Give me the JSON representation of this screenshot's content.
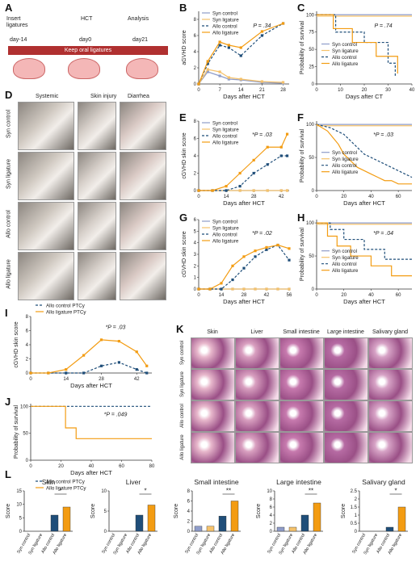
{
  "panel_letters": [
    "A",
    "B",
    "C",
    "D",
    "E",
    "F",
    "G",
    "H",
    "I",
    "J",
    "K",
    "L"
  ],
  "timeline": {
    "labels": [
      "Insert ligatures",
      "HCT",
      "Analysis"
    ],
    "days": [
      "day-14",
      "day0",
      "day21"
    ],
    "bar_text": "Keep oral ligatures"
  },
  "photos": {
    "columns": [
      "Systemic",
      "Skin injury",
      "Diarrhea"
    ],
    "rows": [
      "Syn control",
      "Syn ligature",
      "Allo control",
      "Allo ligature"
    ]
  },
  "histology": {
    "columns": [
      "Skin",
      "Liver",
      "Small intestine",
      "Large intestine",
      "Salivary gland"
    ],
    "rows": [
      "Syn control",
      "Syn ligature",
      "Allo control",
      "Allo ligature"
    ]
  },
  "colors": {
    "syn_control": "#8e9cc9",
    "syn_ligature": "#f5c26b",
    "allo_control": "#1f4e79",
    "allo_ligature": "#f39c12"
  },
  "chart_data": [
    {
      "id": "B",
      "type": "line",
      "ylabel": "aGVHD score",
      "xlabel": "Days after HCT",
      "annotation": "P = .34",
      "x_ticks": [
        0,
        7,
        14,
        21,
        28
      ],
      "y_ticks": [
        0,
        2,
        4,
        6,
        8
      ],
      "xlim": [
        0,
        30
      ],
      "ylim": [
        0,
        9
      ],
      "legend": [
        "Syn control",
        "Syn ligature",
        "Allo control",
        "Allo ligature"
      ],
      "series": [
        {
          "name": "Syn control",
          "x": [
            0,
            3,
            7,
            10,
            14,
            21,
            28
          ],
          "values": [
            0,
            1.5,
            1,
            0.6,
            0.5,
            0.2,
            0.1
          ]
        },
        {
          "name": "Syn ligature",
          "x": [
            0,
            3,
            7,
            10,
            14,
            21,
            28
          ],
          "values": [
            0,
            1.8,
            1.5,
            0.8,
            0.6,
            0.3,
            0.2
          ]
        },
        {
          "name": "Allo control",
          "x": [
            0,
            3,
            7,
            10,
            14,
            21,
            28
          ],
          "values": [
            0,
            2.5,
            4.8,
            4.5,
            3.5,
            6,
            7.5
          ]
        },
        {
          "name": "Allo ligature",
          "x": [
            0,
            3,
            7,
            10,
            14,
            21,
            28
          ],
          "values": [
            0,
            2.8,
            5.2,
            4.8,
            4.5,
            6.5,
            7.5
          ]
        }
      ]
    },
    {
      "id": "C",
      "type": "line",
      "ylabel": "Probability of survival",
      "xlabel": "Days after CT",
      "annotation": "P = .74",
      "x_ticks": [
        0,
        10,
        20,
        30,
        40
      ],
      "y_ticks": [
        0,
        25,
        50,
        75,
        100
      ],
      "xlim": [
        0,
        40
      ],
      "ylim": [
        0,
        105
      ],
      "legend": [
        "Syn control",
        "Syn ligature",
        "Allo control",
        "Allo ligature"
      ],
      "series": [
        {
          "name": "Syn control",
          "x": [
            0,
            40
          ],
          "values": [
            100,
            100
          ]
        },
        {
          "name": "Syn ligature",
          "x": [
            0,
            40
          ],
          "values": [
            98,
            98
          ]
        },
        {
          "name": "Allo control",
          "x": [
            0,
            8,
            8,
            20,
            20,
            30,
            30,
            33,
            33
          ],
          "values": [
            100,
            100,
            75,
            75,
            60,
            60,
            30,
            30,
            10
          ]
        },
        {
          "name": "Allo ligature",
          "x": [
            0,
            7,
            7,
            15,
            15,
            25,
            25,
            34,
            34
          ],
          "values": [
            100,
            100,
            80,
            80,
            60,
            60,
            40,
            40,
            15
          ]
        }
      ]
    },
    {
      "id": "E",
      "type": "line",
      "ylabel": "cGVHD skin score",
      "xlabel": "Days after HCT",
      "annotation": "*P = .03",
      "x_ticks": [
        0,
        14,
        28,
        42
      ],
      "y_ticks": [
        0,
        2,
        4,
        6,
        8
      ],
      "xlim": [
        0,
        46
      ],
      "ylim": [
        0,
        8
      ],
      "legend": [
        "Syn control",
        "Syn ligature",
        "Allo control",
        "Allo ligature"
      ],
      "series": [
        {
          "name": "Syn control",
          "x": [
            0,
            7,
            14,
            21,
            28,
            35,
            42,
            45
          ],
          "values": [
            0,
            0,
            0,
            0,
            0,
            0,
            0,
            0
          ]
        },
        {
          "name": "Syn ligature",
          "x": [
            0,
            7,
            14,
            21,
            28,
            35,
            42,
            45
          ],
          "values": [
            0,
            0,
            0,
            0,
            0,
            0,
            0,
            0
          ]
        },
        {
          "name": "Allo control",
          "x": [
            0,
            7,
            14,
            21,
            28,
            35,
            42,
            45
          ],
          "values": [
            0,
            0,
            0,
            0.5,
            2,
            3,
            4,
            4
          ]
        },
        {
          "name": "Allo ligature",
          "x": [
            0,
            7,
            14,
            21,
            28,
            35,
            42,
            45
          ],
          "values": [
            0,
            0,
            0.5,
            2,
            3.5,
            5,
            5,
            6.5
          ]
        }
      ]
    },
    {
      "id": "F",
      "type": "line",
      "ylabel": "Probability of survival",
      "xlabel": "Days after HCT",
      "annotation": "*P = .03",
      "x_ticks": [
        0,
        20,
        40,
        60
      ],
      "y_ticks": [
        0,
        50,
        100
      ],
      "xlim": [
        0,
        70
      ],
      "ylim": [
        0,
        105
      ],
      "legend": [
        "Syn control",
        "Syn ligature",
        "Allo control",
        "Allo ligature"
      ],
      "series": [
        {
          "name": "Syn control",
          "x": [
            0,
            70
          ],
          "values": [
            100,
            100
          ]
        },
        {
          "name": "Syn ligature",
          "x": [
            0,
            70
          ],
          "values": [
            98,
            98
          ]
        },
        {
          "name": "Allo control",
          "x": [
            0,
            10,
            15,
            20,
            25,
            30,
            35,
            40,
            45,
            50,
            55,
            60,
            65,
            70
          ],
          "values": [
            100,
            95,
            90,
            85,
            75,
            65,
            55,
            50,
            45,
            40,
            35,
            30,
            25,
            20
          ]
        },
        {
          "name": "Allo ligature",
          "x": [
            0,
            8,
            12,
            16,
            20,
            25,
            30,
            35,
            40,
            45,
            50,
            55,
            60,
            70
          ],
          "values": [
            100,
            90,
            80,
            70,
            55,
            45,
            35,
            30,
            25,
            20,
            15,
            15,
            10,
            10
          ]
        }
      ]
    },
    {
      "id": "G",
      "type": "line",
      "ylabel": "cGVHD skin score",
      "xlabel": "Days after HCT",
      "annotation": "*P = .02",
      "x_ticks": [
        0,
        14,
        28,
        42,
        56
      ],
      "y_ticks": [
        0,
        1,
        2,
        3,
        4,
        5,
        6
      ],
      "xlim": [
        0,
        56
      ],
      "ylim": [
        0,
        6
      ],
      "legend": [
        "Syn control",
        "Syn ligature",
        "Allo control",
        "Allo ligature"
      ],
      "series": [
        {
          "name": "Syn control",
          "x": [
            0,
            7,
            14,
            21,
            28,
            35,
            42,
            49,
            56
          ],
          "values": [
            0,
            0,
            0,
            0,
            0,
            0,
            0,
            0,
            0
          ]
        },
        {
          "name": "Syn ligature",
          "x": [
            0,
            7,
            14,
            21,
            28,
            35,
            42,
            49,
            56
          ],
          "values": [
            0,
            0,
            0,
            0,
            0,
            0,
            0,
            0,
            0
          ]
        },
        {
          "name": "Allo control",
          "x": [
            0,
            7,
            14,
            21,
            28,
            35,
            42,
            49,
            56
          ],
          "values": [
            0,
            0,
            0,
            0.8,
            1.8,
            2.8,
            3.4,
            3.8,
            2.5
          ]
        },
        {
          "name": "Allo ligature",
          "x": [
            0,
            7,
            14,
            21,
            28,
            35,
            42,
            49,
            56
          ],
          "values": [
            0,
            0,
            0.5,
            2,
            2.8,
            3.3,
            3.6,
            3.8,
            3.5
          ]
        }
      ]
    },
    {
      "id": "H",
      "type": "line",
      "ylabel": "Probability of survival",
      "xlabel": "Days after HCT",
      "annotation": "*P = .04",
      "x_ticks": [
        0,
        20,
        40,
        60
      ],
      "y_ticks": [
        0,
        50,
        100
      ],
      "xlim": [
        0,
        70
      ],
      "ylim": [
        0,
        105
      ],
      "legend": [
        "Syn control",
        "Syn ligature",
        "Allo control",
        "Allo ligature"
      ],
      "series": [
        {
          "name": "Syn control",
          "x": [
            0,
            70
          ],
          "values": [
            100,
            100
          ]
        },
        {
          "name": "Syn ligature",
          "x": [
            0,
            70
          ],
          "values": [
            98,
            98
          ]
        },
        {
          "name": "Allo control",
          "x": [
            0,
            10,
            10,
            20,
            20,
            35,
            35,
            50,
            50,
            70
          ],
          "values": [
            100,
            100,
            90,
            90,
            75,
            75,
            60,
            60,
            45,
            45
          ]
        },
        {
          "name": "Allo ligature",
          "x": [
            0,
            8,
            8,
            15,
            15,
            25,
            25,
            40,
            40,
            55,
            55,
            70
          ],
          "values": [
            100,
            100,
            80,
            80,
            65,
            65,
            50,
            50,
            35,
            35,
            20,
            20
          ]
        }
      ]
    },
    {
      "id": "I",
      "type": "line",
      "ylabel": "cGVHD skin score",
      "xlabel": "Days after HCT",
      "annotation": "*P = .03",
      "x_ticks": [
        0,
        14,
        28,
        42
      ],
      "y_ticks": [
        0,
        2,
        4,
        6,
        8
      ],
      "xlim": [
        0,
        48
      ],
      "ylim": [
        0,
        8
      ],
      "legend": [
        "Allo control PTCy",
        "Allo ligature PTCy"
      ],
      "series": [
        {
          "name": "Allo control PTCy",
          "x": [
            0,
            7,
            14,
            21,
            28,
            35,
            42,
            46
          ],
          "values": [
            0,
            0,
            0,
            0,
            1,
            1.5,
            0.5,
            0
          ]
        },
        {
          "name": "Allo ligature PTCy",
          "x": [
            0,
            7,
            14,
            21,
            28,
            35,
            42,
            46
          ],
          "values": [
            0,
            0,
            0.5,
            2.5,
            4.7,
            4.5,
            3,
            1
          ]
        }
      ]
    },
    {
      "id": "J",
      "type": "line",
      "ylabel": "Probability of survival",
      "xlabel": "Days after HCT",
      "annotation": "*P = .049",
      "x_ticks": [
        0,
        20,
        40,
        60,
        80
      ],
      "y_ticks": [
        0,
        50,
        100
      ],
      "xlim": [
        0,
        80
      ],
      "ylim": [
        0,
        105
      ],
      "legend": [
        "Allo control PTCy",
        "Allo ligature PTCy"
      ],
      "series": [
        {
          "name": "Allo control PTCy",
          "x": [
            0,
            80
          ],
          "values": [
            100,
            100
          ]
        },
        {
          "name": "Allo ligature PTCy",
          "x": [
            0,
            23,
            23,
            30,
            30,
            80
          ],
          "values": [
            100,
            100,
            60,
            60,
            40,
            40
          ]
        }
      ]
    },
    {
      "id": "L-skin",
      "type": "bar",
      "title": "Skin",
      "ylabel": "Score",
      "categories": [
        "Syn control",
        "Syn ligature",
        "Allo control",
        "Allo ligature"
      ],
      "values": [
        0,
        0,
        6,
        9
      ],
      "y_ticks": [
        0,
        5,
        10,
        15
      ],
      "ylim": [
        0,
        15
      ],
      "annotation": "*"
    },
    {
      "id": "L-liver",
      "type": "bar",
      "title": "Liver",
      "ylabel": "Score",
      "categories": [
        "Syn control",
        "Syn ligature",
        "Allo control",
        "Allo ligature"
      ],
      "values": [
        0,
        0,
        4,
        6.5
      ],
      "y_ticks": [
        0,
        5,
        10
      ],
      "ylim": [
        0,
        10
      ],
      "annotation": "*"
    },
    {
      "id": "L-si",
      "type": "bar",
      "title": "Small intestine",
      "ylabel": "Score",
      "categories": [
        "Syn control",
        "Syn ligature",
        "Allo control",
        "Allo ligature"
      ],
      "values": [
        1,
        1,
        3,
        6
      ],
      "y_ticks": [
        0,
        2,
        4,
        6,
        8
      ],
      "ylim": [
        0,
        8
      ],
      "annotation": "**"
    },
    {
      "id": "L-li",
      "type": "bar",
      "title": "Large intestine",
      "ylabel": "Score",
      "categories": [
        "Syn control",
        "Syn ligature",
        "Allo control",
        "Allo ligature"
      ],
      "values": [
        1,
        1,
        4,
        7
      ],
      "y_ticks": [
        0,
        2,
        4,
        6,
        8,
        10
      ],
      "ylim": [
        0,
        10
      ],
      "annotation": "**"
    },
    {
      "id": "L-sg",
      "type": "bar",
      "title": "Salivary gland",
      "ylabel": "Score",
      "categories": [
        "Syn control",
        "Syn ligature",
        "Allo control",
        "Allo ligature"
      ],
      "values": [
        0,
        0,
        0.25,
        1.5
      ],
      "y_ticks": [
        0,
        0.5,
        1.0,
        1.5,
        2.0,
        2.5
      ],
      "ylim": [
        0,
        2.5
      ],
      "annotation": "*"
    }
  ]
}
